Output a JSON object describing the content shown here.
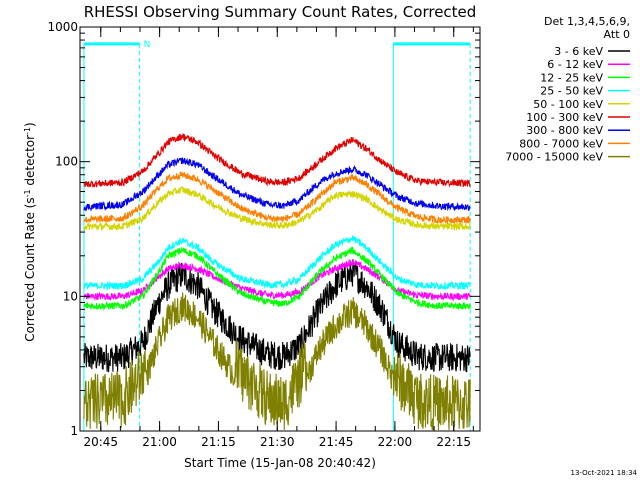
{
  "chart_data": {
    "type": "line",
    "title": "RHESSI Observing Summary Count Rates, Corrected",
    "xlabel": "Start Time (15-Jan-08 20:40:42)",
    "ylabel": "Corrected Count Rate (s",
    "ylabel_sup1": "-1",
    "ylabel_mid": " detector",
    "ylabel_sup2": "-1",
    "ylabel_end": ")",
    "y_scale": "log",
    "ylim": [
      1,
      1000
    ],
    "xlim_minutes_after_20_40_42": [
      -1,
      101
    ],
    "yticks": [
      {
        "label": "1",
        "value": 1
      },
      {
        "label": "10",
        "value": 10
      },
      {
        "label": "100",
        "value": 100
      },
      {
        "label": "1000",
        "value": 1000
      }
    ],
    "xticks": [
      {
        "label": "20:45",
        "t": 4.3
      },
      {
        "label": "21:00",
        "t": 19.3
      },
      {
        "label": "21:15",
        "t": 34.3
      },
      {
        "label": "21:30",
        "t": 49.3
      },
      {
        "label": "21:45",
        "t": 64.3
      },
      {
        "label": "22:00",
        "t": 79.3
      },
      {
        "label": "22:15",
        "t": 94.3
      }
    ],
    "legend_header": [
      "Det 1,3,4,5,6,9,",
      "Att 0"
    ],
    "legend_position": "right",
    "night_intervals": [
      [
        0,
        14.2
      ],
      [
        78.9,
        98.5
      ]
    ],
    "night_bar_value": 750,
    "night_marker": "N",
    "night_color": "#00ffff",
    "orbit_peaks_minutes": [
      21.5,
      68.5
    ],
    "series": [
      {
        "name": "3 - 6 keV",
        "color": "#000000",
        "x": [
          0,
          10,
          15,
          19,
          21.5,
          25,
          29,
          33,
          40,
          47,
          51,
          55,
          60,
          64,
          68.5,
          72,
          76,
          80,
          85,
          90,
          98.5
        ],
        "y": [
          3.5,
          3.5,
          4.5,
          9,
          12,
          14.5,
          12,
          8,
          4.8,
          3.7,
          3.6,
          4.3,
          8,
          12,
          15,
          12,
          8,
          4.5,
          3.6,
          3.5,
          3.5
        ]
      },
      {
        "name": "6 - 12 keV",
        "color": "#ff00ff",
        "x": [
          0,
          10,
          15,
          19,
          21.5,
          25,
          29,
          33,
          40,
          47,
          51,
          55,
          60,
          64,
          68.5,
          72,
          76,
          80,
          85,
          90,
          98.5
        ],
        "y": [
          10,
          10,
          11,
          14,
          16,
          17,
          16,
          14,
          11.5,
          10.2,
          10.2,
          10.8,
          14,
          16,
          18,
          16,
          13.5,
          11,
          10.2,
          10,
          10
        ]
      },
      {
        "name": "12 - 25 keV",
        "color": "#00ff00",
        "x": [
          0,
          10,
          15,
          19,
          21.5,
          25,
          29,
          33,
          40,
          47,
          51,
          55,
          60,
          64,
          68.5,
          72,
          76,
          80,
          85,
          90,
          98.5
        ],
        "y": [
          8.5,
          8.5,
          10,
          15,
          20,
          22,
          20,
          15.5,
          10.5,
          9,
          8.8,
          10,
          15,
          19,
          22,
          18.5,
          14,
          10.5,
          9,
          8.5,
          8.5
        ]
      },
      {
        "name": "25 - 50 keV",
        "color": "#00ffff",
        "x": [
          0,
          10,
          15,
          19,
          21.5,
          25,
          29,
          33,
          40,
          47,
          51,
          55,
          60,
          64,
          68.5,
          72,
          76,
          80,
          85,
          90,
          98.5
        ],
        "y": [
          12,
          12,
          13.5,
          18,
          23,
          26,
          23,
          18,
          13.5,
          12.2,
          12.2,
          13.5,
          19,
          24,
          27,
          23,
          17.5,
          13.5,
          12.2,
          12,
          12
        ]
      },
      {
        "name": "50 - 100 keV",
        "color": "#d4d400",
        "x": [
          0,
          10,
          15,
          19,
          21.5,
          25,
          29,
          33,
          40,
          47,
          51,
          55,
          60,
          64,
          68.5,
          72,
          76,
          80,
          85,
          90,
          98.5
        ],
        "y": [
          33,
          33,
          38,
          50,
          58,
          62,
          57,
          48,
          38,
          34,
          33.5,
          36,
          45,
          56,
          58,
          53,
          43,
          37,
          34,
          33,
          33
        ]
      },
      {
        "name": "100 - 300 keV",
        "color": "#e00000",
        "x": [
          0,
          10,
          15,
          19,
          21.5,
          25,
          29,
          33,
          40,
          47,
          51,
          55,
          60,
          64,
          68.5,
          72,
          76,
          80,
          85,
          90,
          98.5
        ],
        "y": [
          68,
          70,
          85,
          115,
          140,
          155,
          140,
          112,
          82,
          71,
          70,
          76,
          100,
          125,
          145,
          125,
          100,
          82,
          72,
          70,
          69
        ]
      },
      {
        "name": "300 - 800 keV",
        "color": "#0000ee",
        "x": [
          0,
          10,
          15,
          19,
          21.5,
          25,
          29,
          33,
          40,
          47,
          51,
          55,
          60,
          64,
          68.5,
          72,
          76,
          80,
          85,
          90,
          98.5
        ],
        "y": [
          46,
          48,
          60,
          80,
          95,
          102,
          95,
          78,
          57,
          48,
          47,
          52,
          70,
          82,
          88,
          80,
          66,
          55,
          49,
          47,
          46
        ]
      },
      {
        "name": "800 - 7000 keV",
        "color": "#ff8000",
        "x": [
          0,
          10,
          15,
          19,
          21.5,
          25,
          29,
          33,
          40,
          47,
          51,
          55,
          60,
          64,
          68.5,
          72,
          76,
          80,
          85,
          90,
          98.5
        ],
        "y": [
          37,
          38,
          47,
          64,
          75,
          80,
          74,
          62,
          45,
          38,
          37.5,
          41,
          55,
          70,
          76,
          68,
          55,
          45,
          39,
          37,
          37
        ]
      },
      {
        "name": "7000 - 15000 keV",
        "color": "#808000",
        "x": [
          0,
          10,
          15,
          19,
          21.5,
          25,
          29,
          33,
          40,
          47,
          51,
          55,
          60,
          64,
          68.5,
          72,
          76,
          80,
          85,
          90,
          98.5
        ],
        "y": [
          1.3,
          1.4,
          2.2,
          4.5,
          6.8,
          8.5,
          7,
          4.5,
          2.2,
          1.4,
          1.3,
          2,
          4,
          6,
          7.8,
          6,
          3.8,
          2,
          1.4,
          1.3,
          1.3
        ]
      }
    ]
  },
  "footer": {
    "timestamp": "13-Oct-2021 18:34"
  }
}
